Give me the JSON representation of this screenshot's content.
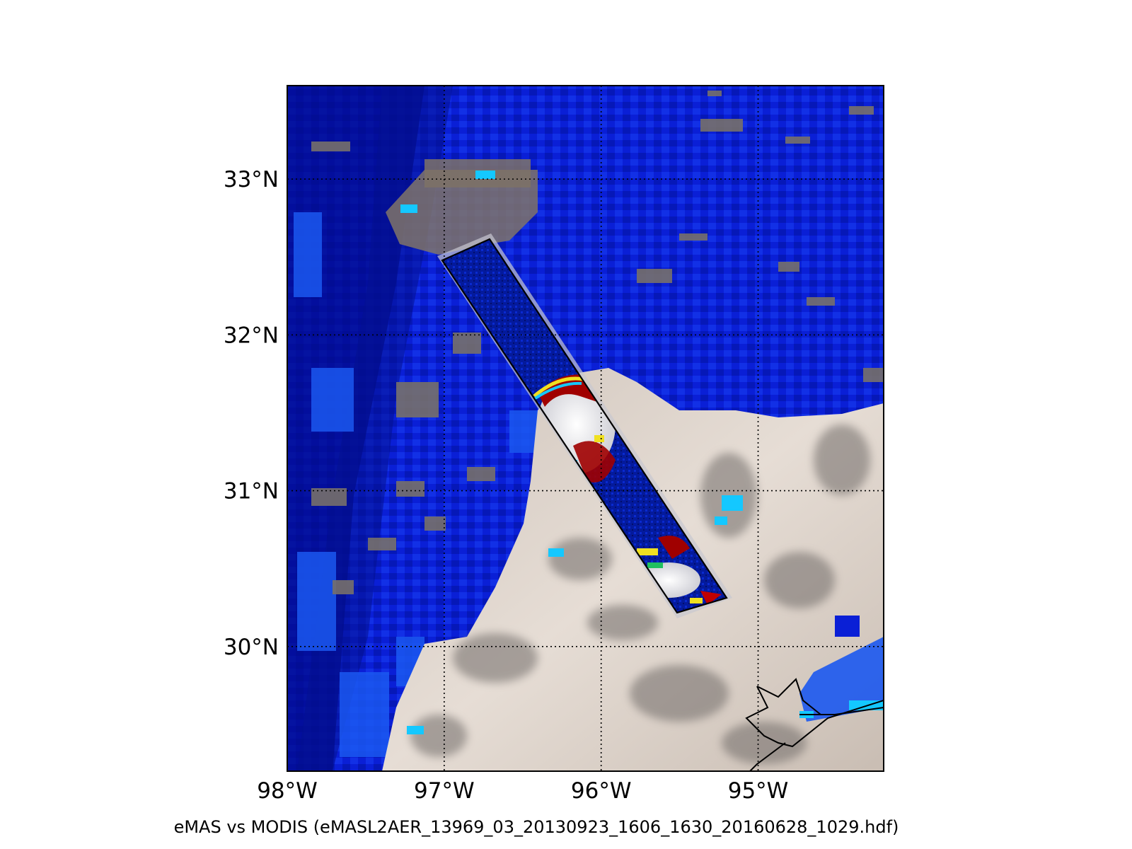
{
  "caption": "eMAS vs MODIS (eMASL2AER_13969_03_20130923_1606_1630_20160628_1029.hdf)",
  "map": {
    "lon_range": [
      -98.0,
      -94.2
    ],
    "lat_range": [
      29.2,
      33.6
    ],
    "lat_ticks": [
      {
        "value": 33,
        "label": "33°N"
      },
      {
        "value": 32,
        "label": "32°N"
      },
      {
        "value": 31,
        "label": "31°N"
      },
      {
        "value": 30,
        "label": "30°N"
      }
    ],
    "lon_ticks": [
      {
        "value": -98,
        "label": "98°W"
      },
      {
        "value": -97,
        "label": "97°W"
      },
      {
        "value": -96,
        "label": "96°W"
      },
      {
        "value": -95,
        "label": "95°W"
      }
    ],
    "gridlines": "dotted",
    "swath_outline_lonlat": [
      [
        -97.05,
        32.5
      ],
      [
        -96.75,
        32.64
      ],
      [
        -95.15,
        30.33
      ],
      [
        -95.47,
        30.22
      ]
    ]
  },
  "colors": {
    "ocean_blue": "#0a1fd6",
    "dark_blue": "#020a8a",
    "light_blue": "#1b6cff",
    "cyan": "#14c8ff",
    "cloud_beige": "#d9cdc3",
    "cloud_shadow": "#7d7a78",
    "land_gray": "#807468",
    "hot_red": "#a00000",
    "yellow": "#f0e020",
    "outline": "#000000"
  }
}
